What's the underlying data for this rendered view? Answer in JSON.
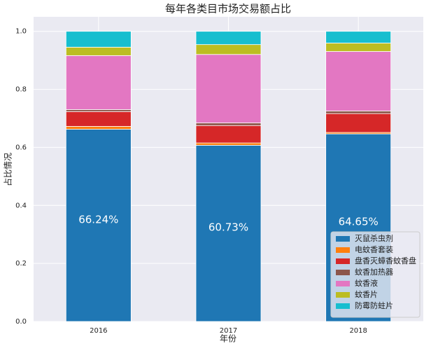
{
  "chart_data": {
    "type": "stacked-bar",
    "title": "每年各类目市场交易额占比",
    "xlabel": "年份",
    "ylabel": "占比情况",
    "categories": [
      "2016",
      "2017",
      "2018"
    ],
    "series": [
      {
        "name": "灭鼠杀虫剂",
        "color": "#1f77b4",
        "values": [
          0.6624,
          0.6073,
          0.6465
        ],
        "value_labels": [
          "66.24%",
          "60.73%",
          "64.65%"
        ]
      },
      {
        "name": "电蚊香套装",
        "color": "#ff7f0e",
        "values": [
          0.01,
          0.008,
          0.005
        ]
      },
      {
        "name": "盘香灭蟑香蚊香盘",
        "color": "#d62728",
        "values": [
          0.051,
          0.06,
          0.065
        ]
      },
      {
        "name": "蚊香加热器",
        "color": "#8c564b",
        "values": [
          0.007,
          0.009,
          0.009
        ]
      },
      {
        "name": "蚊香液",
        "color": "#e377c2",
        "values": [
          0.186,
          0.236,
          0.205
        ]
      },
      {
        "name": "蚊香片",
        "color": "#bcbd22",
        "values": [
          0.029,
          0.034,
          0.029
        ]
      },
      {
        "name": "防霉防蛀片",
        "color": "#17becf",
        "values": [
          0.0546,
          0.0457,
          0.0405
        ]
      }
    ],
    "ylim": [
      0,
      1.05
    ],
    "yticks": [
      {
        "value": 0,
        "label": "0.0"
      },
      0.2,
      0.4,
      0.6,
      0.8,
      {
        "value": 1,
        "label": "1.0"
      }
    ],
    "grid": true,
    "legend": "lower right"
  }
}
